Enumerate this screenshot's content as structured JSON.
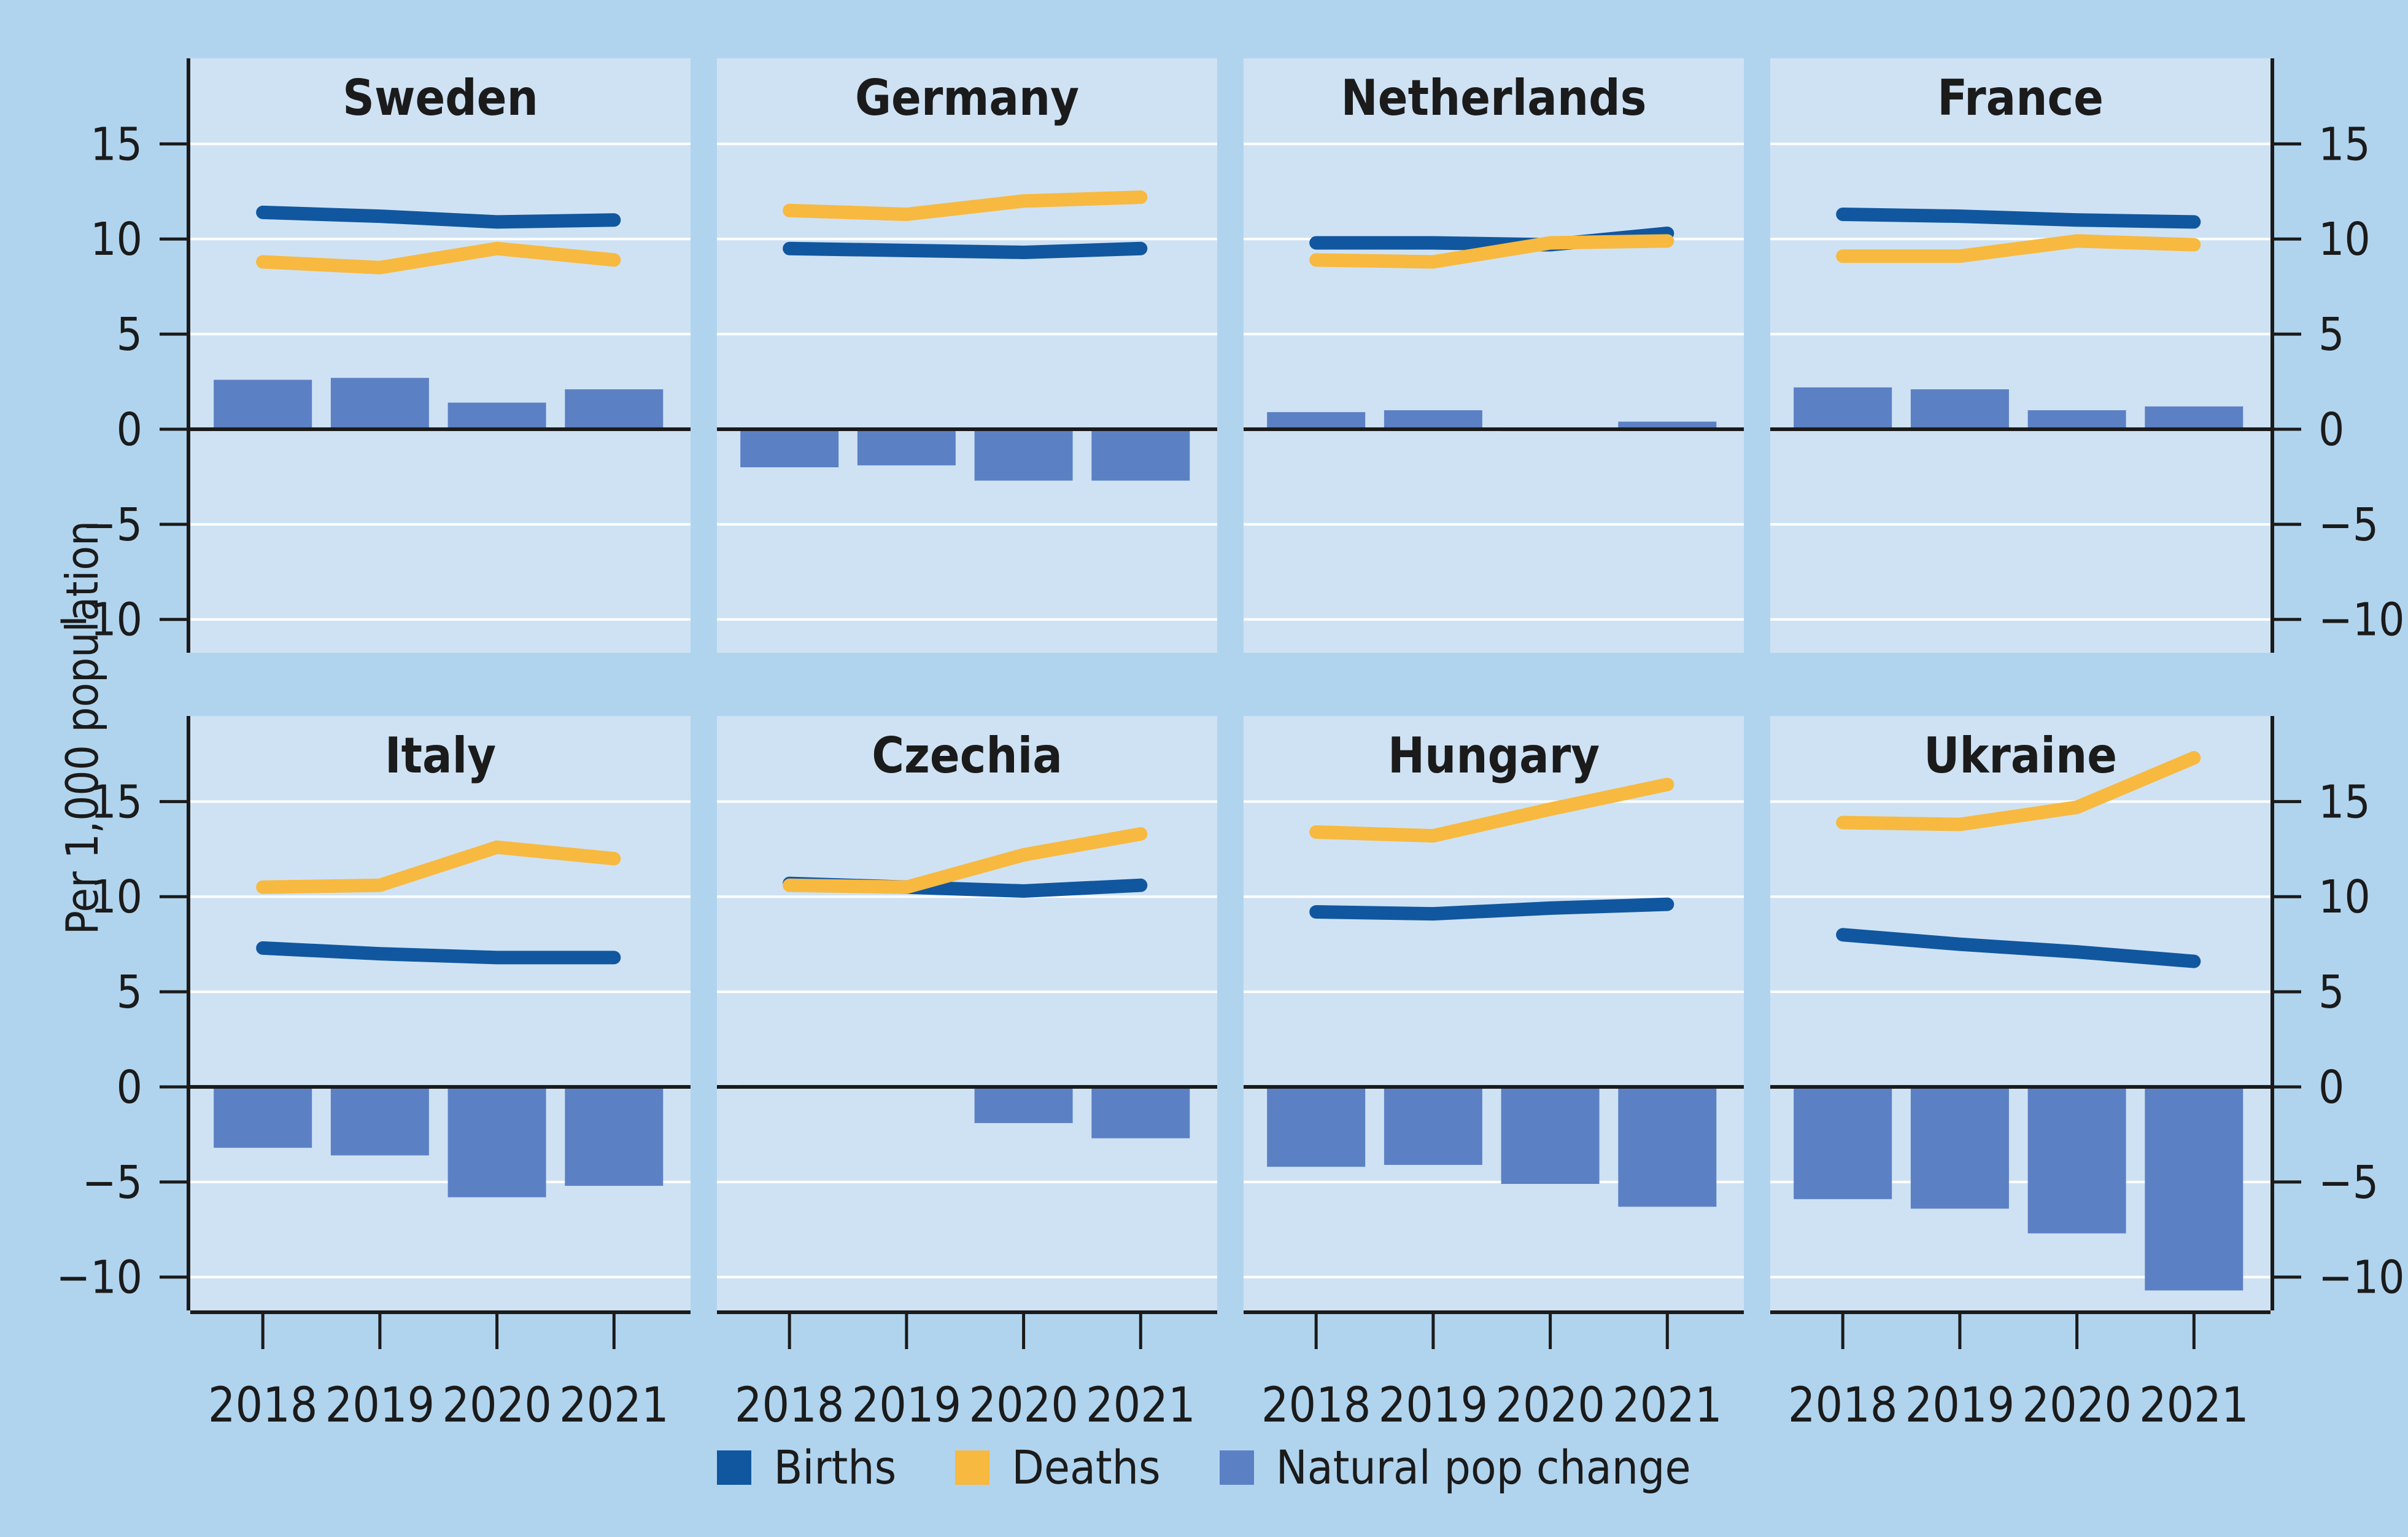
{
  "ylabel": "Per 1,000 population",
  "legend": {
    "items": [
      {
        "label": "Births",
        "color": "#11579f"
      },
      {
        "label": "Deaths",
        "color": "#f7b93f"
      },
      {
        "label": "Natural pop change",
        "color": "#5b80c4"
      }
    ]
  },
  "colors": {
    "page_bg": "#b1d4ee",
    "panel_bg": "#cfe2f4",
    "births": "#11579f",
    "deaths": "#f7b93f",
    "natural": "#5b80c4",
    "grid": "#ffffff",
    "axis": "#1b1b1b"
  },
  "chart_data": {
    "type": "line+bar small multiples",
    "x": [
      "2018",
      "2019",
      "2020",
      "2021"
    ],
    "unit": "per 1,000 population",
    "series_names": [
      "Births",
      "Deaths",
      "Natural pop change"
    ],
    "legend_position": "bottom-center",
    "y_axis": {
      "range": [
        -11.75,
        19.5
      ],
      "grid": true,
      "ticks": [
        {
          "v": 15,
          "label": "15"
        },
        {
          "v": 10,
          "label": "10"
        },
        {
          "v": 5,
          "label": "5"
        },
        {
          "v": 0,
          "label": "0"
        },
        {
          "v": -5,
          "label": "−5"
        },
        {
          "v": -10,
          "label": "−10"
        }
      ]
    },
    "panels": [
      {
        "title": "Sweden",
        "births": [
          11.4,
          11.2,
          10.9,
          11.0
        ],
        "deaths": [
          8.8,
          8.5,
          9.5,
          8.9
        ],
        "natural_change": [
          2.6,
          2.7,
          1.4,
          2.1
        ]
      },
      {
        "title": "Germany",
        "births": [
          9.5,
          9.4,
          9.3,
          9.5
        ],
        "deaths": [
          11.5,
          11.3,
          12.0,
          12.2
        ],
        "natural_change": [
          -2.0,
          -1.9,
          -2.7,
          -2.7
        ]
      },
      {
        "title": "Netherlands",
        "births": [
          9.8,
          9.8,
          9.7,
          10.3
        ],
        "deaths": [
          8.9,
          8.8,
          9.8,
          9.9
        ],
        "natural_change": [
          0.9,
          1.0,
          -0.1,
          0.4
        ]
      },
      {
        "title": "France",
        "births": [
          11.3,
          11.2,
          11.0,
          10.9
        ],
        "deaths": [
          9.1,
          9.1,
          9.9,
          9.7
        ],
        "natural_change": [
          2.2,
          2.1,
          1.0,
          1.2
        ]
      },
      {
        "title": "Italy",
        "births": [
          7.3,
          7.0,
          6.8,
          6.8
        ],
        "deaths": [
          10.5,
          10.6,
          12.6,
          12.0
        ],
        "natural_change": [
          -3.2,
          -3.6,
          -5.8,
          -5.2
        ]
      },
      {
        "title": "Czechia",
        "births": [
          10.7,
          10.5,
          10.3,
          10.6
        ],
        "deaths": [
          10.6,
          10.5,
          12.2,
          13.3
        ],
        "natural_change": [
          0.1,
          0.0,
          -1.9,
          -2.7
        ]
      },
      {
        "title": "Hungary",
        "births": [
          9.2,
          9.1,
          9.4,
          9.6
        ],
        "deaths": [
          13.4,
          13.2,
          14.6,
          15.9
        ],
        "natural_change": [
          -4.2,
          -4.1,
          -5.1,
          -6.3
        ]
      },
      {
        "title": "Ukraine",
        "births": [
          8.0,
          7.5,
          7.1,
          6.6
        ],
        "deaths": [
          13.9,
          13.8,
          14.7,
          17.3
        ],
        "natural_change": [
          -5.9,
          -6.4,
          -7.7,
          -10.7
        ]
      }
    ]
  }
}
